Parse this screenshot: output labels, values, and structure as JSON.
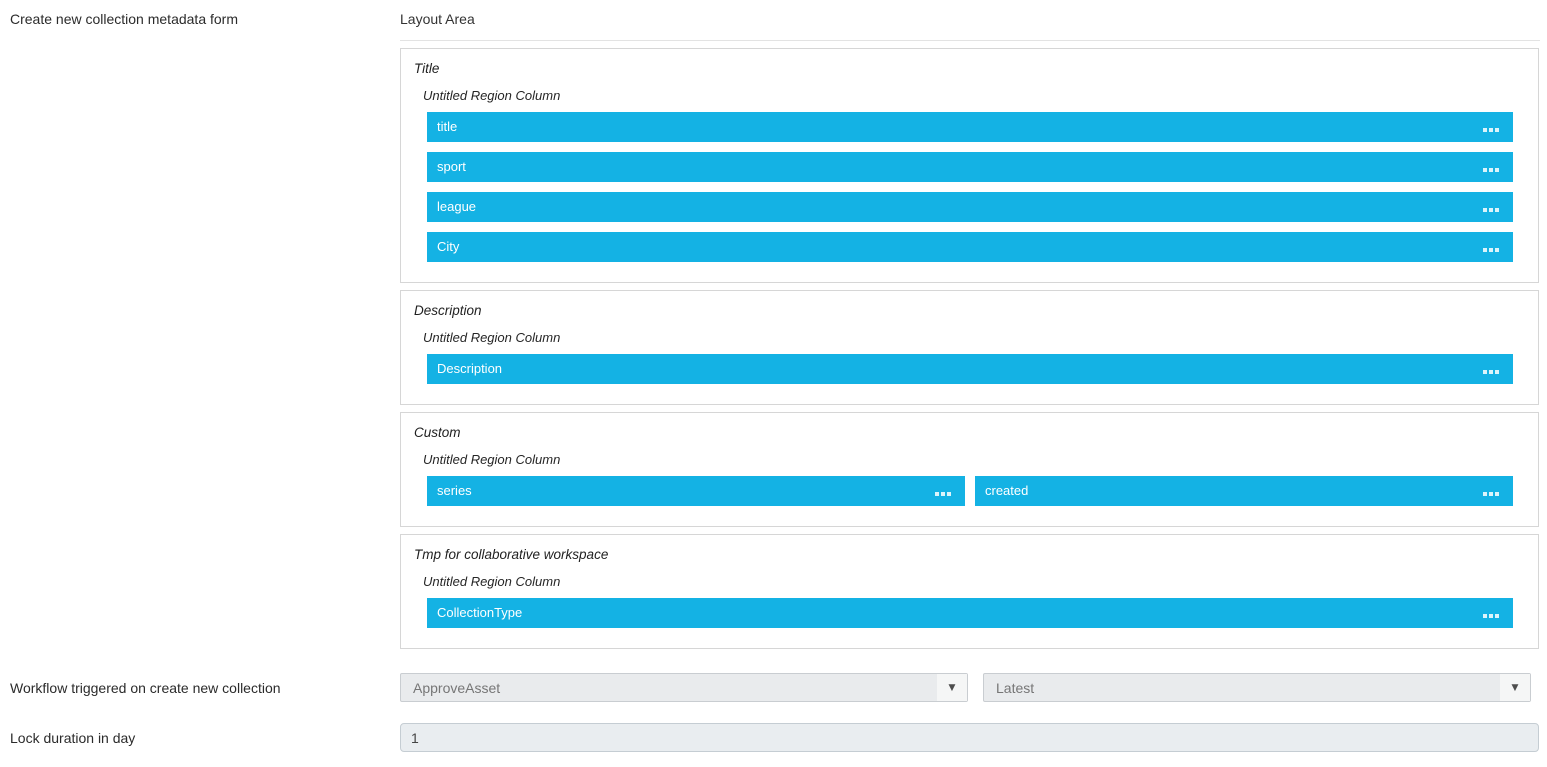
{
  "labels": {
    "form_title": "Create new collection metadata form",
    "workflow": "Workflow triggered on create new collection",
    "lock_duration": "Lock duration in day"
  },
  "layout_area": {
    "title": "Layout Area",
    "sections": [
      {
        "title": "Title",
        "column_label": "Untitled Region Column",
        "fields": [
          "title",
          "sport",
          "league",
          "City"
        ]
      },
      {
        "title": "Description",
        "column_label": "Untitled Region Column",
        "fields": [
          "Description"
        ]
      },
      {
        "title": "Custom",
        "column_label": "Untitled Region Column",
        "fields": [
          "series",
          "created"
        ]
      },
      {
        "title": "Tmp for collaborative workspace",
        "column_label": "Untitled Region Column",
        "fields": [
          "CollectionType"
        ]
      }
    ]
  },
  "workflow": {
    "selected_workflow": "ApproveAsset",
    "selected_version": "Latest"
  },
  "lock_duration_value": "1",
  "icons": {
    "dropdown_arrow": "▼"
  },
  "colors": {
    "field_bar_blue": "#14b2e4",
    "dropdown_bg": "#e9ebed",
    "input_bg": "#e9edf0"
  }
}
